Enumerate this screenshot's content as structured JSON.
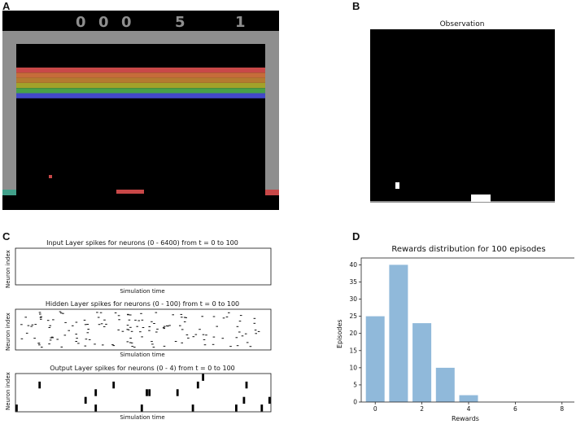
{
  "panels": {
    "a": "A",
    "b": "B",
    "c": "C",
    "d": "D"
  },
  "game": {
    "score_digits": [
      "0",
      "0",
      "0",
      "5",
      "1"
    ],
    "colors": {
      "background": "#000000",
      "wall": "#8e8e8e",
      "hud": "#8e8e8e",
      "paddle": "#c84848",
      "ball": "#c84848",
      "left_marker": "#42a08a",
      "right_marker": "#c84848"
    },
    "brick_rows": [
      "#c84848",
      "#c66c3a",
      "#b47a30",
      "#a2a22a",
      "#48a048",
      "#4248c8"
    ]
  },
  "observation": {
    "title": "Observation"
  },
  "spikes": {
    "xlabel": "Simulation time",
    "ylabel": "Neuron index",
    "input_title": "Input Layer spikes for neurons (0 - 6400) from t = 0 to 100",
    "hidden_title": "Hidden Layer spikes for neurons (0 - 100) from t = 0 to 100",
    "output_title": "Output Layer spikes for neurons (0 - 4) from t = 0 to 100",
    "output_spikes": [
      [
        [
          73,
          74
        ]
      ],
      [
        [
          9,
          10
        ],
        [
          38,
          39
        ],
        [
          71,
          72
        ],
        [
          90,
          91
        ]
      ],
      [
        [
          31,
          32
        ],
        [
          51,
          52
        ],
        [
          52,
          53
        ],
        [
          63,
          64
        ]
      ],
      [
        [
          27,
          28
        ],
        [
          89,
          90
        ],
        [
          99,
          100
        ]
      ],
      [
        [
          0,
          1
        ],
        [
          31,
          32
        ],
        [
          49,
          50
        ],
        [
          69,
          70
        ],
        [
          86,
          87
        ],
        [
          96,
          97
        ]
      ]
    ]
  },
  "chart_data": {
    "type": "bar",
    "title": "Rewards distribution for 100 episodes",
    "xlabel": "Rewards",
    "ylabel": "Episodes",
    "x": [
      0,
      1,
      2,
      3,
      4
    ],
    "values": [
      25,
      40,
      23,
      10,
      2
    ],
    "xlim": [
      -0.6,
      8.6
    ],
    "ylim": [
      0,
      42
    ],
    "xticks": [
      "0",
      "2",
      "4",
      "6",
      "8"
    ],
    "yticks": [
      "0",
      "5",
      "10",
      "15",
      "20",
      "25",
      "30",
      "35",
      "40"
    ],
    "bar_color": "#90b9da",
    "grid": false
  }
}
